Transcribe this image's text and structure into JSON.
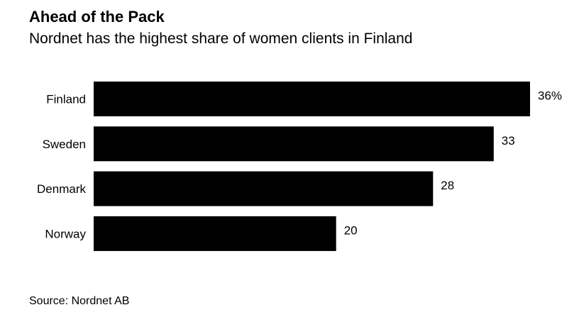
{
  "chart_data": {
    "type": "bar",
    "orientation": "horizontal",
    "title": "Ahead of the Pack",
    "subtitle": "Nordnet has the highest share of women clients in Finland",
    "categories": [
      "Finland",
      "Sweden",
      "Denmark",
      "Norway"
    ],
    "values": [
      36,
      33,
      28,
      20
    ],
    "value_labels": [
      "36%",
      "33",
      "28",
      "20"
    ],
    "unit": "%",
    "xlim": [
      0,
      36
    ],
    "grid": false,
    "legend": "none",
    "bar_color": "#000000",
    "source": "Source: Nordnet AB"
  }
}
